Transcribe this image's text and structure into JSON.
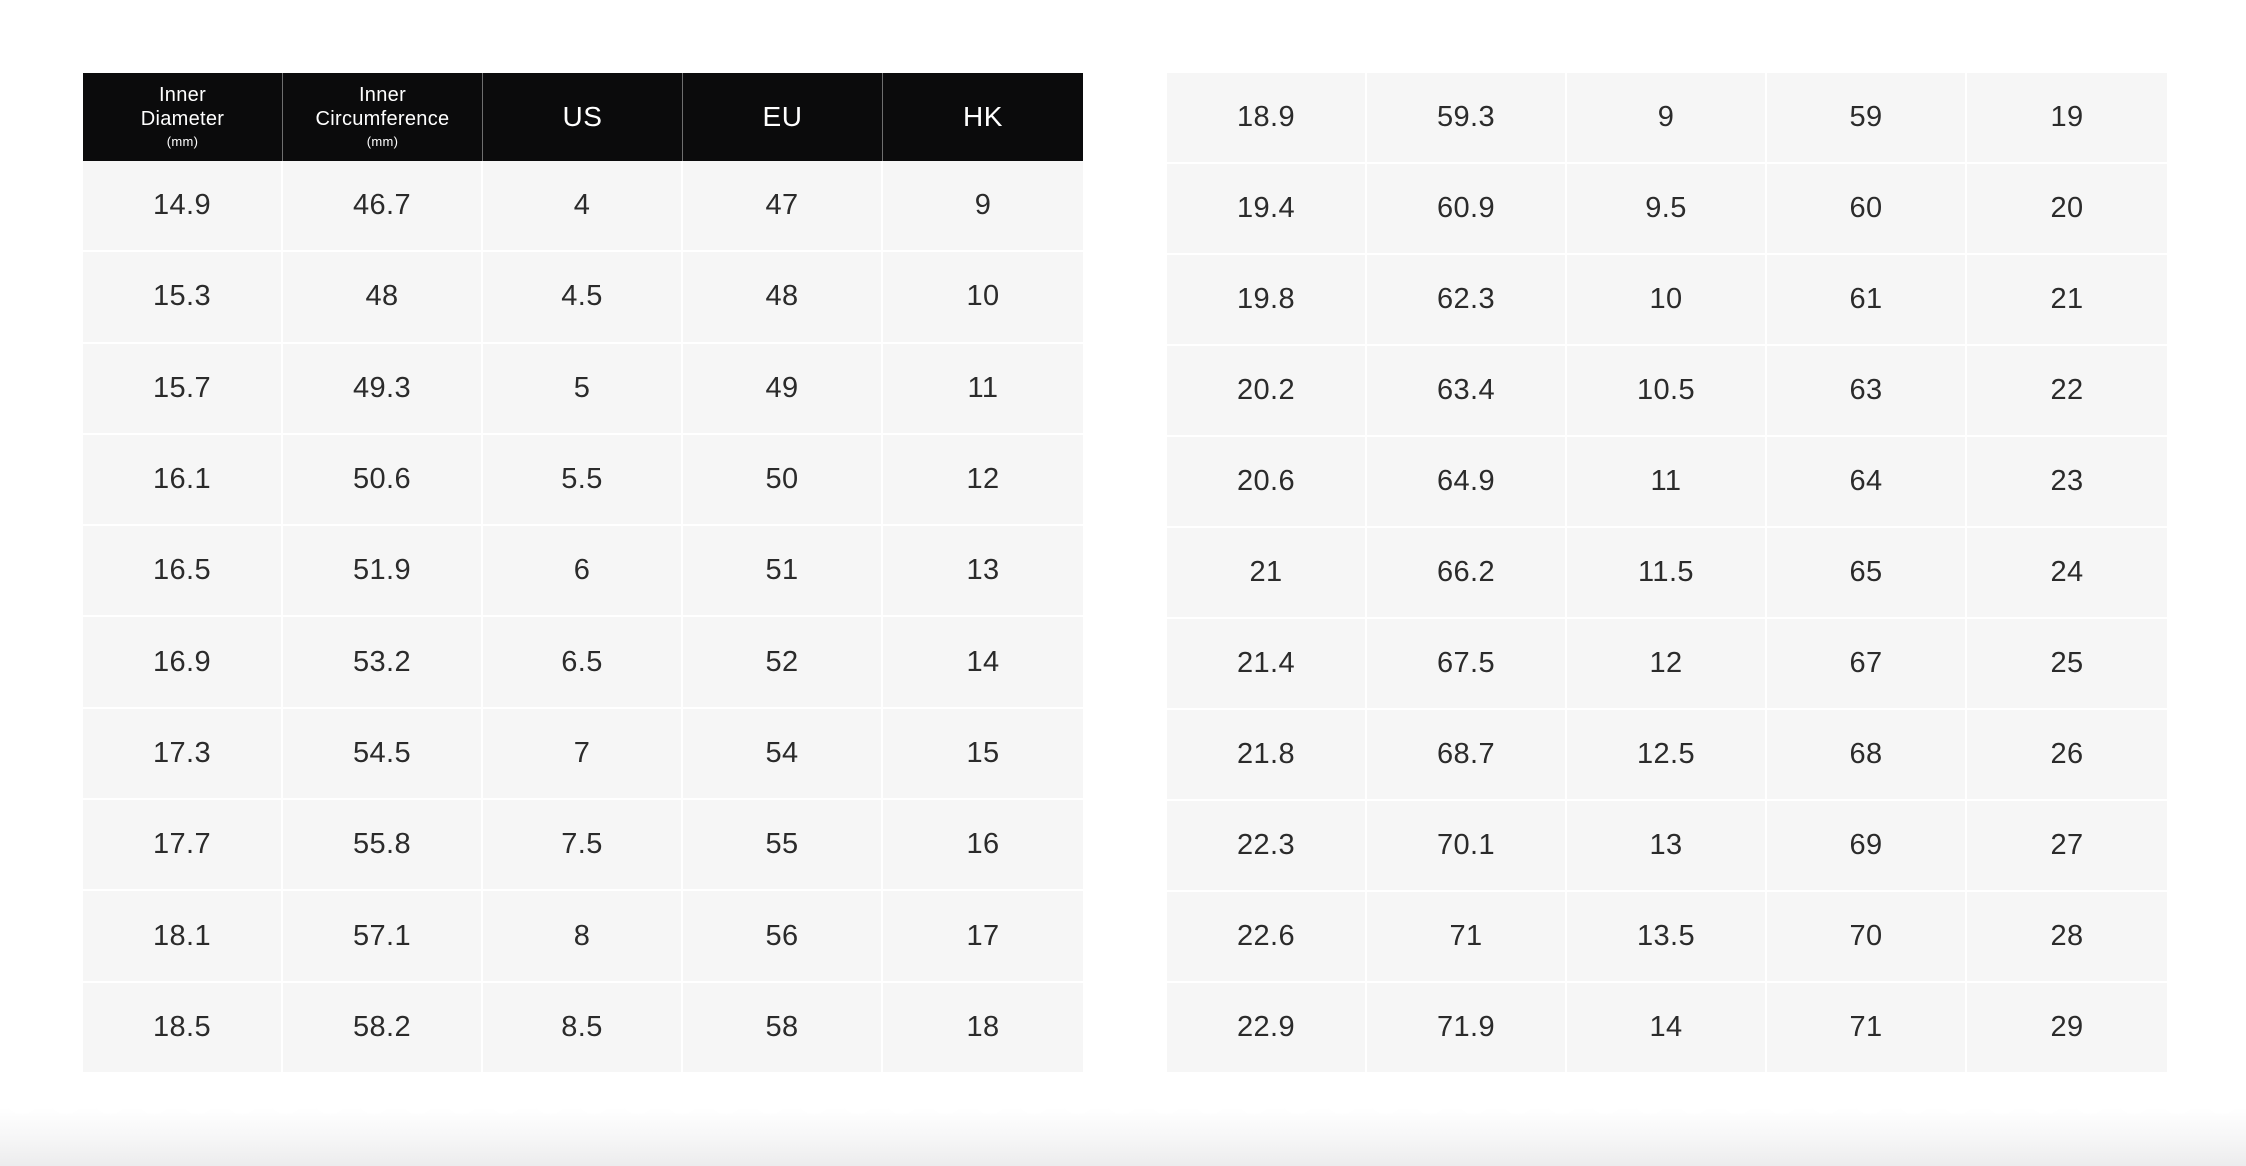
{
  "colors": {
    "page_background": "#ffffff",
    "header_background": "#0b0b0c",
    "header_text": "#ffffff",
    "header_divider": "#6f6f6f",
    "cell_background": "#f6f6f6",
    "cell_text": "#2b2b2b",
    "cell_divider": "#ffffff"
  },
  "left_table": {
    "header": {
      "columns": [
        {
          "lines": [
            "Inner",
            "Diameter"
          ],
          "unit": "(mm)"
        },
        {
          "lines": [
            "Inner",
            "Circumference"
          ],
          "unit": "(mm)"
        },
        {
          "lines": [
            "US"
          ]
        },
        {
          "lines": [
            "EU"
          ]
        },
        {
          "lines": [
            "HK"
          ]
        }
      ]
    },
    "rows": [
      [
        "14.9",
        "46.7",
        "4",
        "47",
        "9"
      ],
      [
        "15.3",
        "48",
        "4.5",
        "48",
        "10"
      ],
      [
        "15.7",
        "49.3",
        "5",
        "49",
        "11"
      ],
      [
        "16.1",
        "50.6",
        "5.5",
        "50",
        "12"
      ],
      [
        "16.5",
        "51.9",
        "6",
        "51",
        "13"
      ],
      [
        "16.9",
        "53.2",
        "6.5",
        "52",
        "14"
      ],
      [
        "17.3",
        "54.5",
        "7",
        "54",
        "15"
      ],
      [
        "17.7",
        "55.8",
        "7.5",
        "55",
        "16"
      ],
      [
        "18.1",
        "57.1",
        "8",
        "56",
        "17"
      ],
      [
        "18.5",
        "58.2",
        "8.5",
        "58",
        "18"
      ]
    ]
  },
  "right_table": {
    "rows": [
      [
        "18.9",
        "59.3",
        "9",
        "59",
        "19"
      ],
      [
        "19.4",
        "60.9",
        "9.5",
        "60",
        "20"
      ],
      [
        "19.8",
        "62.3",
        "10",
        "61",
        "21"
      ],
      [
        "20.2",
        "63.4",
        "10.5",
        "63",
        "22"
      ],
      [
        "20.6",
        "64.9",
        "11",
        "64",
        "23"
      ],
      [
        "21",
        "66.2",
        "11.5",
        "65",
        "24"
      ],
      [
        "21.4",
        "67.5",
        "12",
        "67",
        "25"
      ],
      [
        "21.8",
        "68.7",
        "12.5",
        "68",
        "26"
      ],
      [
        "22.3",
        "70.1",
        "13",
        "69",
        "27"
      ],
      [
        "22.6",
        "71",
        "13.5",
        "70",
        "28"
      ],
      [
        "22.9",
        "71.9",
        "14",
        "71",
        "29"
      ]
    ]
  },
  "chart_data": {
    "type": "table",
    "title": "Ring size conversion chart (continuous table split into two side-by-side panels; header only on left panel)",
    "columns": [
      "Inner Diameter (mm)",
      "Inner Circumference (mm)",
      "US",
      "EU",
      "HK"
    ],
    "rows_left_panel": [
      [
        14.9,
        46.7,
        4,
        47,
        9
      ],
      [
        15.3,
        48,
        4.5,
        48,
        10
      ],
      [
        15.7,
        49.3,
        5,
        49,
        11
      ],
      [
        16.1,
        50.6,
        5.5,
        50,
        12
      ],
      [
        16.5,
        51.9,
        6,
        51,
        13
      ],
      [
        16.9,
        53.2,
        6.5,
        52,
        14
      ],
      [
        17.3,
        54.5,
        7,
        54,
        15
      ],
      [
        17.7,
        55.8,
        7.5,
        55,
        16
      ],
      [
        18.1,
        57.1,
        8,
        56,
        17
      ],
      [
        18.5,
        58.2,
        8.5,
        58,
        18
      ]
    ],
    "rows_right_panel": [
      [
        18.9,
        59.3,
        9,
        59,
        19
      ],
      [
        19.4,
        60.9,
        9.5,
        60,
        20
      ],
      [
        19.8,
        62.3,
        10,
        61,
        21
      ],
      [
        20.2,
        63.4,
        10.5,
        63,
        22
      ],
      [
        20.6,
        64.9,
        11,
        64,
        23
      ],
      [
        21,
        66.2,
        11.5,
        65,
        24
      ],
      [
        21.4,
        67.5,
        12,
        67,
        25
      ],
      [
        21.8,
        68.7,
        12.5,
        68,
        26
      ],
      [
        22.3,
        70.1,
        13,
        69,
        27
      ],
      [
        22.6,
        71,
        13.5,
        70,
        28
      ],
      [
        22.9,
        71.9,
        14,
        71,
        29
      ]
    ]
  }
}
